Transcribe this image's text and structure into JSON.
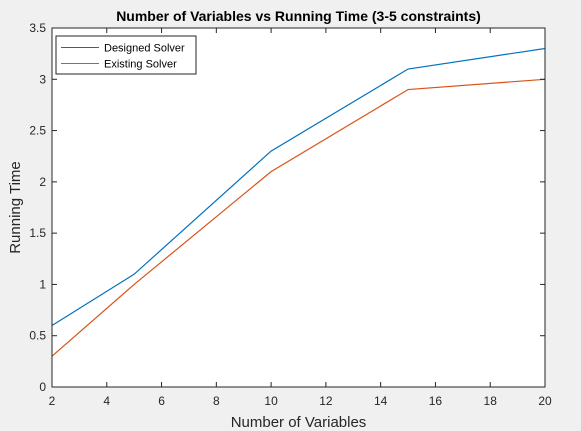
{
  "chart_data": {
    "type": "line",
    "title": "Number of Variables vs Running Time (3-5 constraints)",
    "xlabel": "Number of Variables",
    "ylabel": "Running Time",
    "xlim": [
      2,
      20
    ],
    "ylim": [
      0,
      3.5
    ],
    "xticks": [
      2,
      4,
      6,
      8,
      10,
      12,
      14,
      16,
      18,
      20
    ],
    "yticks": [
      0,
      0.5,
      1,
      1.5,
      2,
      2.5,
      3,
      3.5
    ],
    "grid": false,
    "legend_position": "top-left",
    "x": [
      2,
      5,
      10,
      15,
      20
    ],
    "series": [
      {
        "name": "Designed Solver",
        "color": "#0072bd",
        "values": [
          0.6,
          1.1,
          2.3,
          3.1,
          3.3
        ]
      },
      {
        "name": "Existing Solver",
        "color": "#d95319",
        "values": [
          0.3,
          1.0,
          2.1,
          2.9,
          3.0
        ]
      }
    ]
  },
  "colors": {
    "figure_background": "#f0f0f0",
    "axes_background": "#ffffff",
    "axis_color": "#262626"
  }
}
